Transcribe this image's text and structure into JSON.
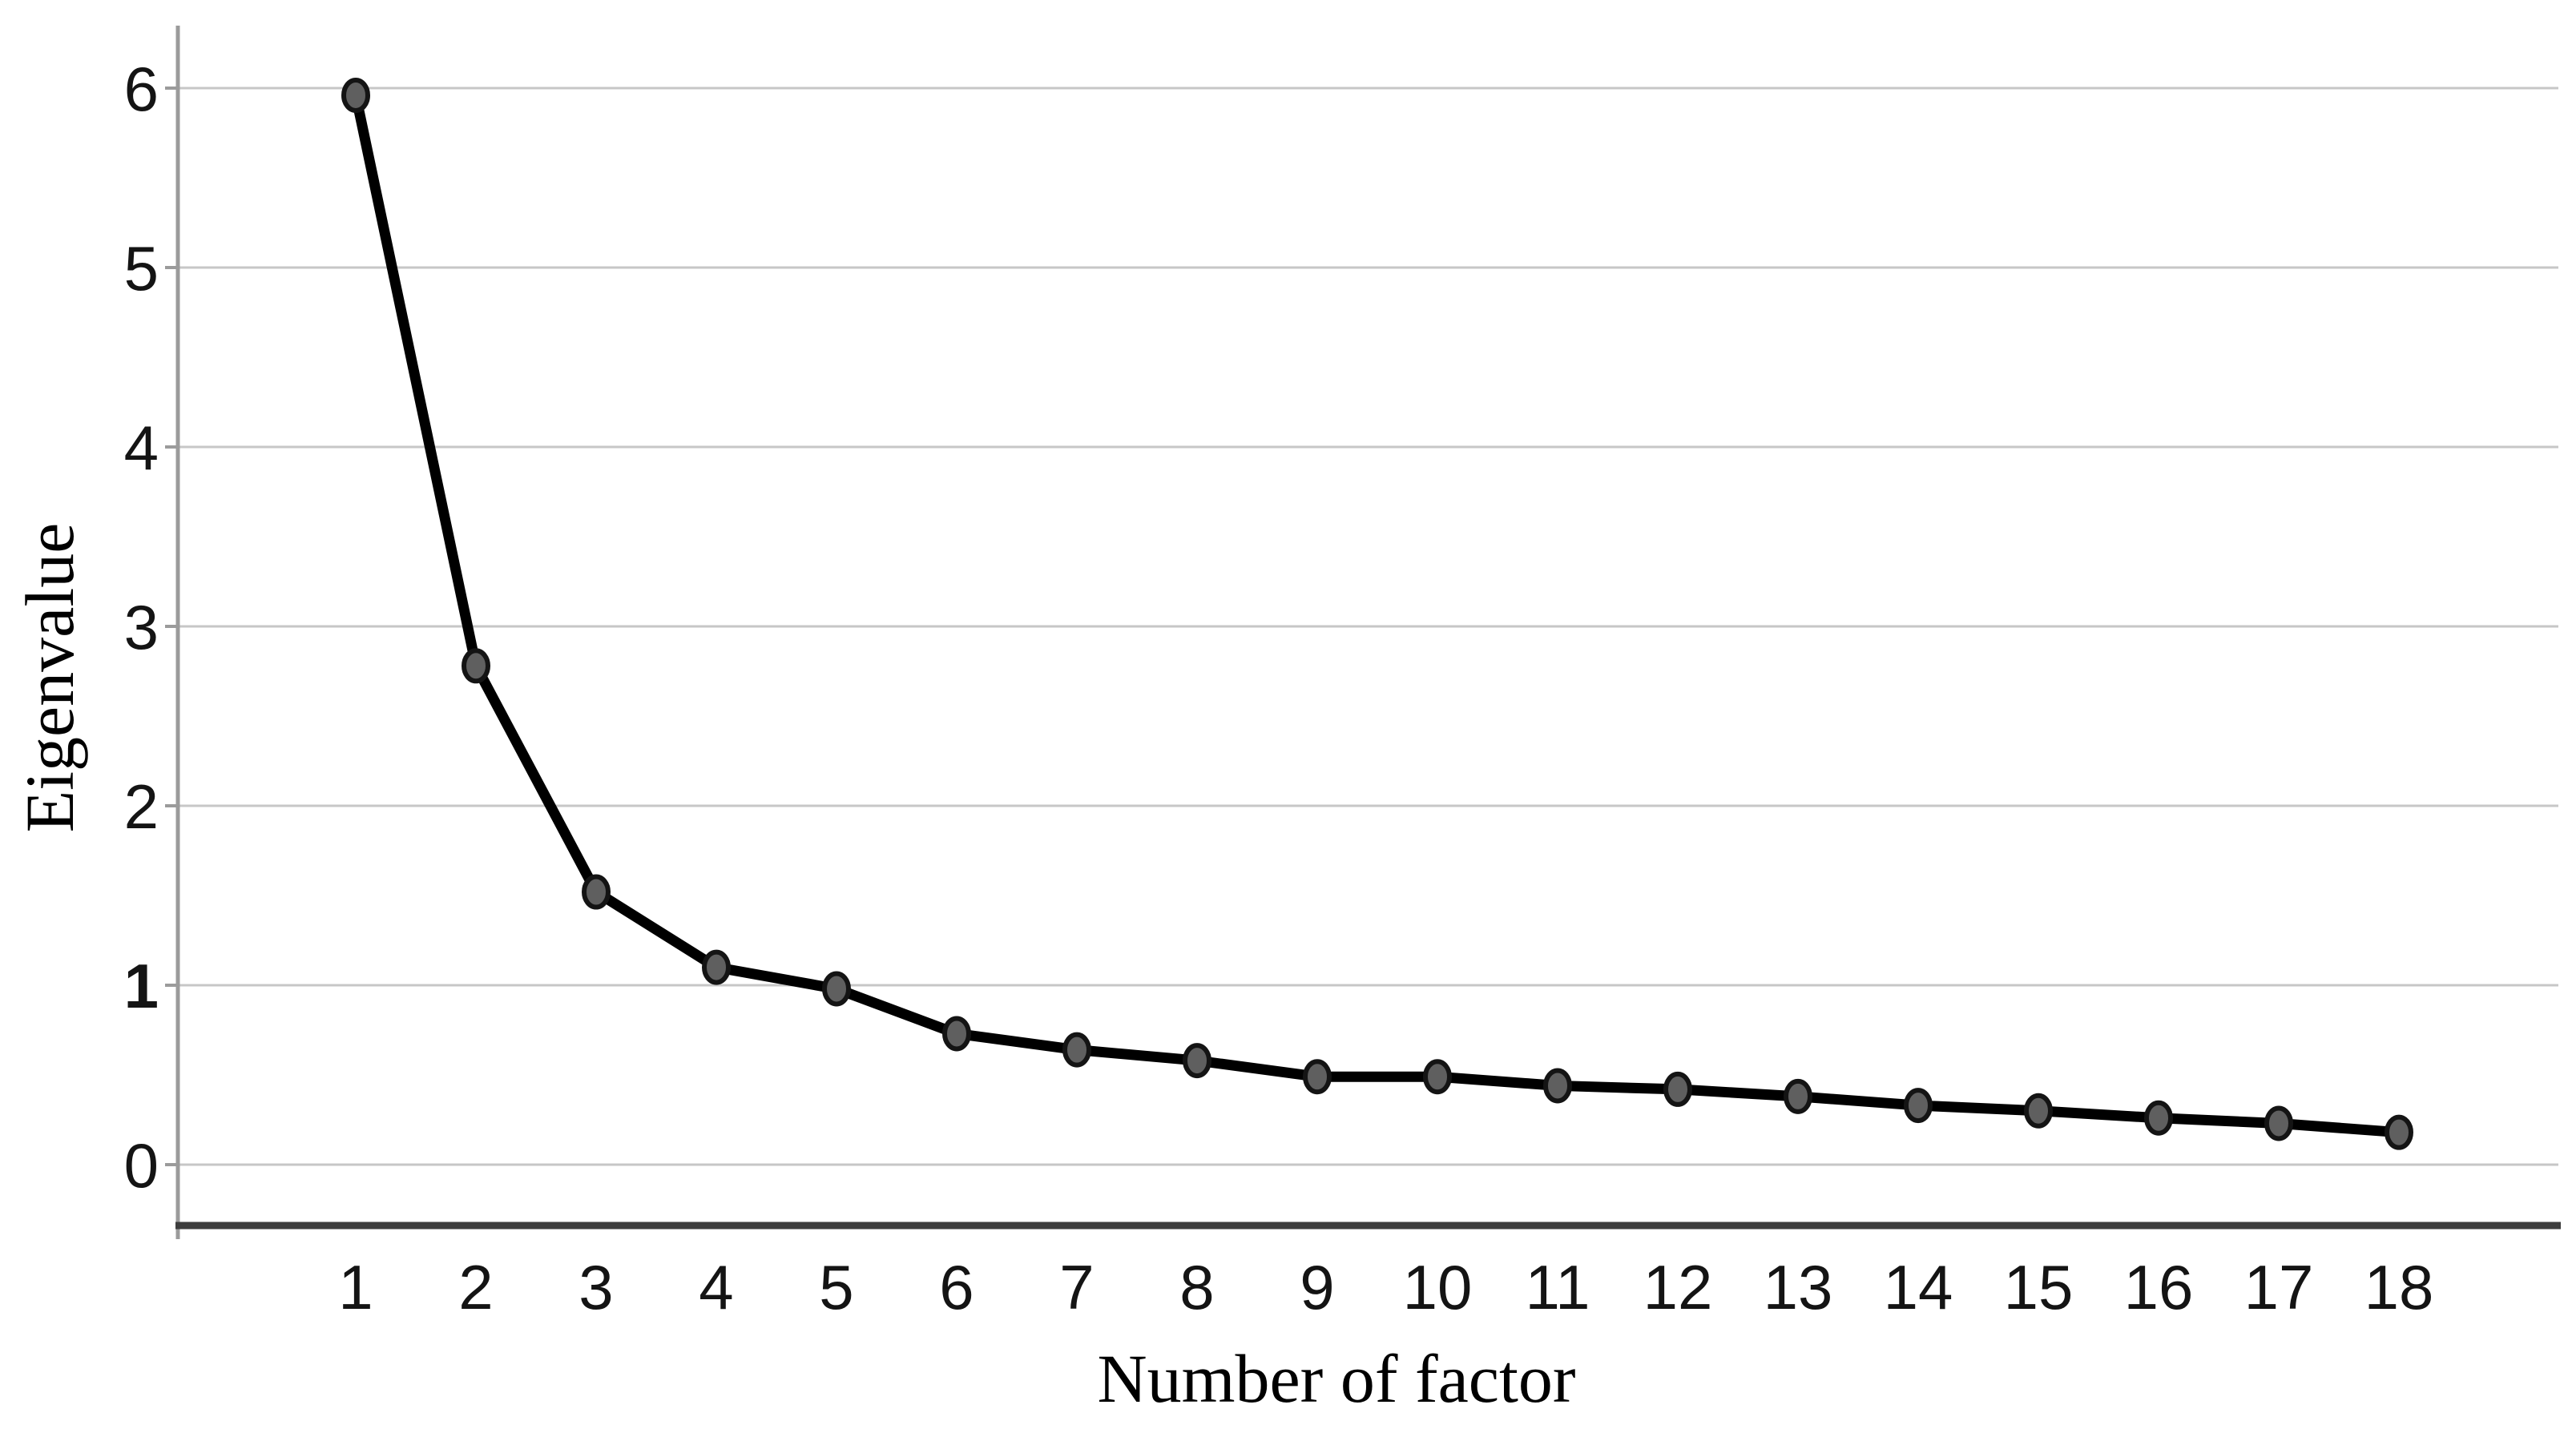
{
  "chart_data": {
    "type": "line",
    "xlabel": "Number of factor",
    "ylabel": "Eigenvalue",
    "x": [
      1,
      2,
      3,
      4,
      5,
      6,
      7,
      8,
      9,
      10,
      11,
      12,
      13,
      14,
      15,
      16,
      17,
      18
    ],
    "x_tick_labels": [
      "1",
      "2",
      "3",
      "4",
      "5",
      "6",
      "7",
      "8",
      "9",
      "10",
      "11",
      "12",
      "13",
      "14",
      "15",
      "16",
      "17",
      "18"
    ],
    "values": [
      5.96,
      2.78,
      1.52,
      1.1,
      0.98,
      0.73,
      0.64,
      0.58,
      0.49,
      0.49,
      0.44,
      0.42,
      0.38,
      0.33,
      0.3,
      0.26,
      0.23,
      0.18
    ],
    "y_ticks": [
      {
        "value": 0,
        "label": "0",
        "bold": false
      },
      {
        "value": 1,
        "label": "1",
        "bold": true
      },
      {
        "value": 2,
        "label": "2",
        "bold": false
      },
      {
        "value": 3,
        "label": "3",
        "bold": false
      },
      {
        "value": 4,
        "label": "4",
        "bold": false
      },
      {
        "value": 5,
        "label": "5",
        "bold": false
      },
      {
        "value": 6,
        "label": "6",
        "bold": false
      }
    ],
    "ylim": [
      0,
      6
    ],
    "grid": "horizontal",
    "legend": "none",
    "marker": "filled-circle",
    "colors": {
      "line": "#000000",
      "marker_fill": "#5f5f5f",
      "marker_stroke": "#141414",
      "gridline": "#c7c7c7",
      "y_axis": "#9b9b9b",
      "x_axis": "#3d3d3d",
      "text": "#141414"
    }
  }
}
